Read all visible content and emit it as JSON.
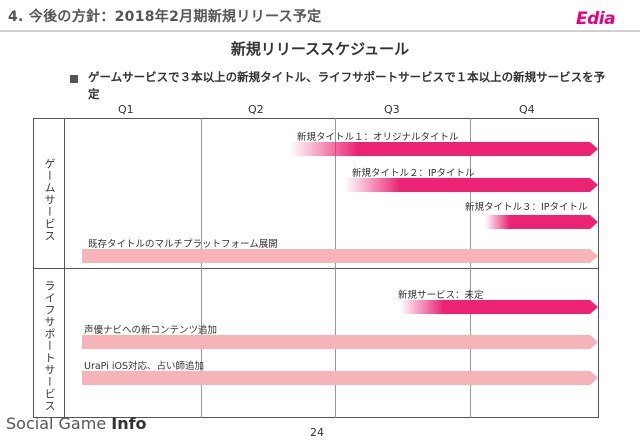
{
  "header": {
    "title": "4. 今後の方針：2018年2月期新規リリース予定",
    "logo": "Edia"
  },
  "slide_title": "新規リリーススケジュール",
  "bullet": "ゲームサービスで３本以上の新規タイトル、ライフサポートサービスで１本以上の新規サービスを予定",
  "quarters": [
    "Q1",
    "Q2",
    "Q3",
    "Q4"
  ],
  "categories": {
    "game": "ゲームサービス",
    "life": "ライフサポートサービス"
  },
  "bars": {
    "new1": "新規タイトル１：オリジナルタイトル",
    "new2": "新規タイトル２：IPタイトル",
    "new3": "新規タイトル３：IPタイトル",
    "multi": "既存タイトルのマルチプラットフォーム展開",
    "newsvc": "新規サービス：未定",
    "seiyu": "声優ナビへの新コンテンツ追加",
    "urapi": "UraPi iOS対応、占い師追加"
  },
  "colors": {
    "accent": "#ec2272",
    "light_bar": "#f6b4b8",
    "brand": "#e4007f"
  },
  "footer": {
    "brand_regular": "Social Game ",
    "brand_bold": "Info",
    "page": "24"
  }
}
